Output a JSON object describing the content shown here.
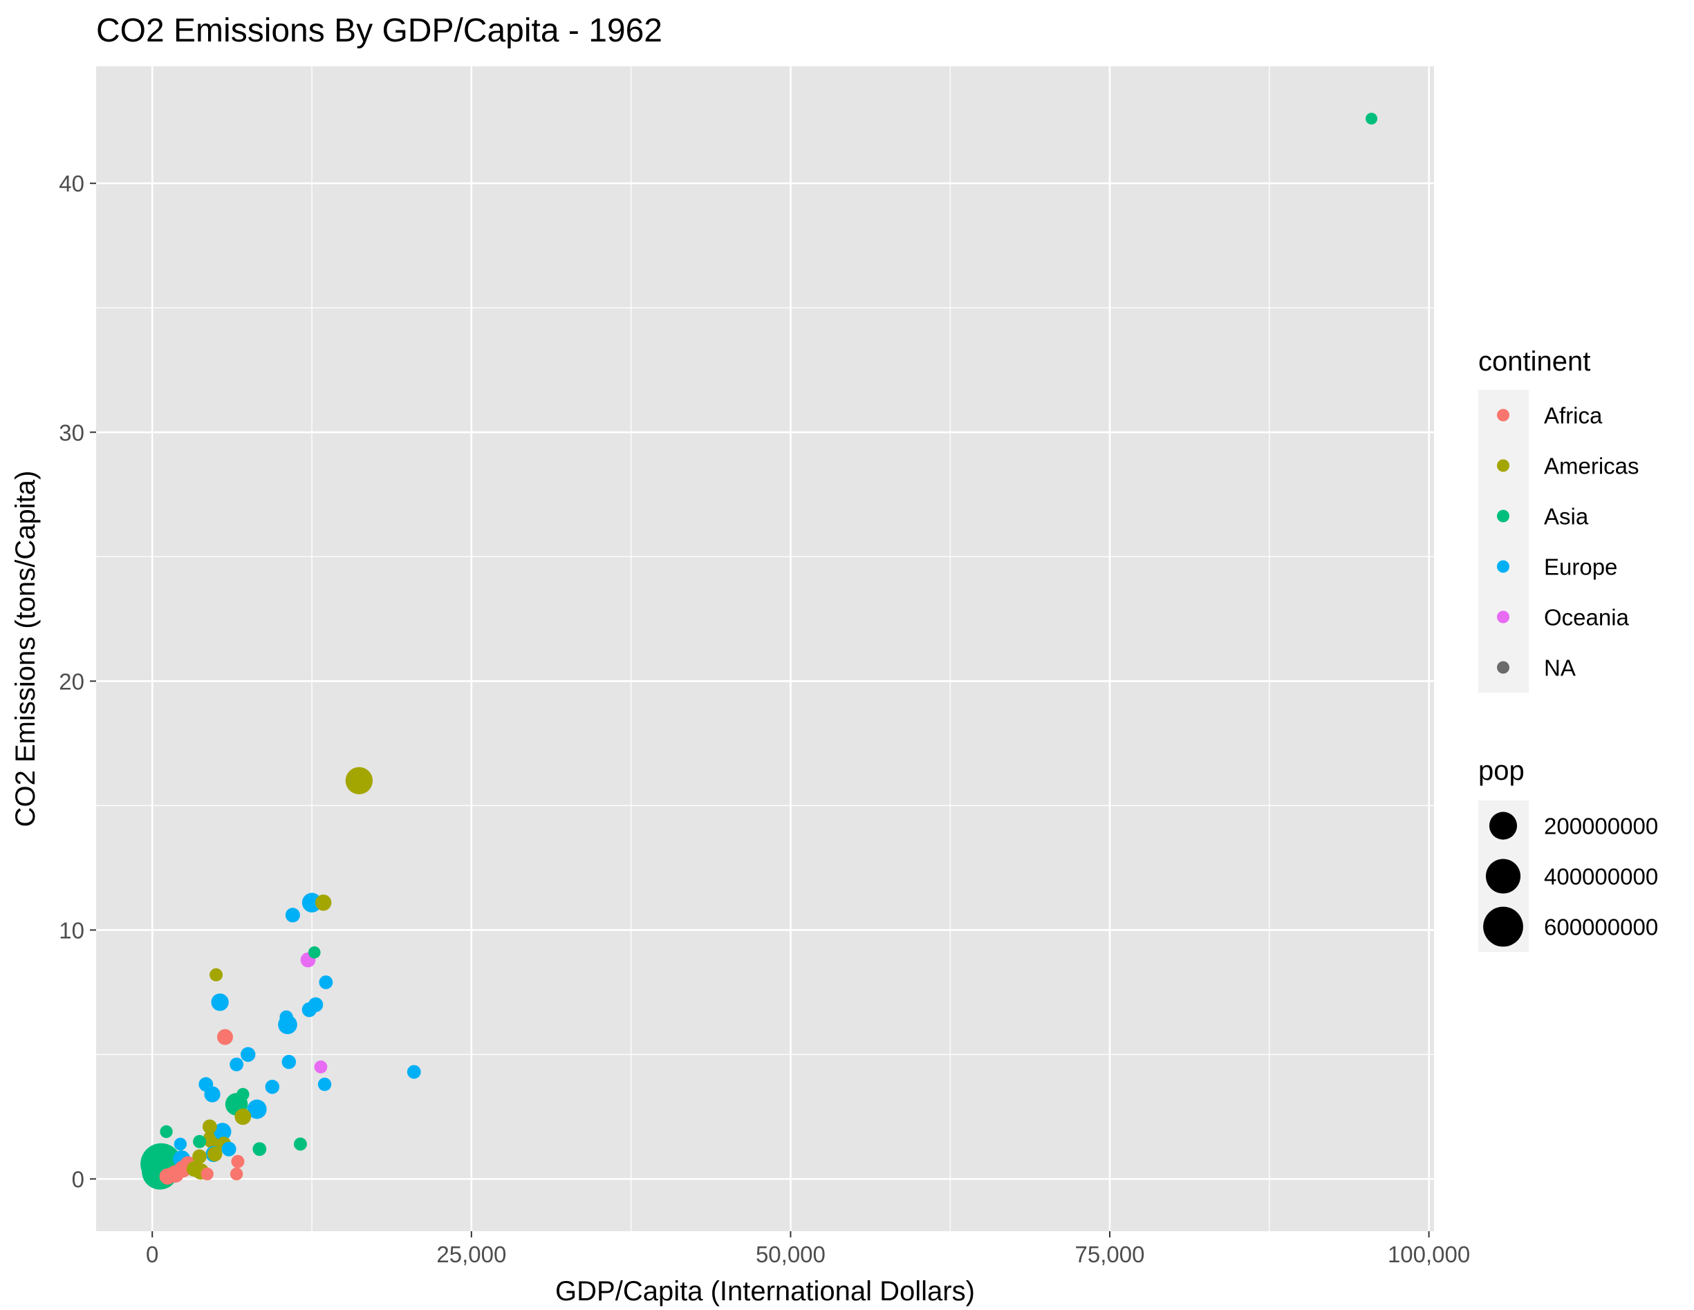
{
  "chart_data": {
    "type": "scatter",
    "title": "CO2 Emissions By GDP/Capita - 1962",
    "xlabel": "GDP/Capita (International Dollars)",
    "ylabel": "CO2 Emissions (tons/Capita)",
    "xlim": [
      -4400,
      100400
    ],
    "ylim": [
      -2.1,
      44.7
    ],
    "x_ticks": [
      {
        "value": 0,
        "label": "0"
      },
      {
        "value": 25000,
        "label": "25,000"
      },
      {
        "value": 50000,
        "label": "50,000"
      },
      {
        "value": 75000,
        "label": "75,000"
      },
      {
        "value": 100000,
        "label": "100,000"
      }
    ],
    "y_ticks": [
      {
        "value": 0,
        "label": "0"
      },
      {
        "value": 10,
        "label": "10"
      },
      {
        "value": 20,
        "label": "20"
      },
      {
        "value": 30,
        "label": "30"
      },
      {
        "value": 40,
        "label": "40"
      }
    ],
    "x_minor": [
      12500,
      37500,
      62500,
      87500
    ],
    "y_minor": [
      5,
      15,
      25,
      35
    ],
    "grid": true,
    "panel_color": "#e5e5e5",
    "grid_color": "#ffffff",
    "legend_position": "right",
    "color_legend": {
      "title": "continent",
      "items": [
        {
          "label": "Africa",
          "color": "#f8766d"
        },
        {
          "label": "Americas",
          "color": "#a3a500"
        },
        {
          "label": "Asia",
          "color": "#00bf7d"
        },
        {
          "label": "Europe",
          "color": "#00b0f6"
        },
        {
          "label": "Oceania",
          "color": "#e76bf3"
        },
        {
          "label": "NA",
          "color": "#6b6b6b"
        }
      ]
    },
    "size_legend": {
      "title": "pop",
      "items": [
        {
          "label": "200000000",
          "pop": 200000000
        },
        {
          "label": "400000000",
          "pop": 400000000
        },
        {
          "label": "600000000",
          "pop": 600000000
        }
      ]
    },
    "series": [
      {
        "name": "Africa",
        "color": "#f8766d",
        "points": [
          {
            "x": 5700,
            "y": 5.7,
            "pop": 17000000
          },
          {
            "x": 6700,
            "y": 0.7,
            "pop": 3000000
          },
          {
            "x": 6600,
            "y": 0.2,
            "pop": 2000000
          },
          {
            "x": 4300,
            "y": 0.2,
            "pop": 2000000
          },
          {
            "x": 1800,
            "y": 0.2,
            "pop": 30000000
          },
          {
            "x": 1200,
            "y": 0.1,
            "pop": 20000000
          },
          {
            "x": 2400,
            "y": 0.4,
            "pop": 25000000
          },
          {
            "x": 2800,
            "y": 0.6,
            "pop": 15000000
          }
        ]
      },
      {
        "name": "Americas",
        "color": "#a3a500",
        "points": [
          {
            "x": 16200,
            "y": 16.0,
            "pop": 187000000
          },
          {
            "x": 13400,
            "y": 11.1,
            "pop": 19000000
          },
          {
            "x": 5000,
            "y": 8.2,
            "pop": 3000000
          },
          {
            "x": 7100,
            "y": 2.5,
            "pop": 21000000
          },
          {
            "x": 4500,
            "y": 2.1,
            "pop": 8000000
          },
          {
            "x": 4700,
            "y": 1.6,
            "pop": 40000000
          },
          {
            "x": 5600,
            "y": 1.4,
            "pop": 10000000
          },
          {
            "x": 3300,
            "y": 0.4,
            "pop": 15000000
          },
          {
            "x": 3700,
            "y": 0.9,
            "pop": 8000000
          },
          {
            "x": 4900,
            "y": 1.0,
            "pop": 10000000
          },
          {
            "x": 3800,
            "y": 0.3,
            "pop": 20000000
          }
        ]
      },
      {
        "name": "Asia",
        "color": "#00bf7d",
        "points": [
          {
            "x": 95500,
            "y": 42.6,
            "pop": 400000
          },
          {
            "x": 700,
            "y": 0.6,
            "pop": 665000000
          },
          {
            "x": 600,
            "y": 0.3,
            "pop": 455000000
          },
          {
            "x": 6600,
            "y": 3.0,
            "pop": 95000000
          },
          {
            "x": 1100,
            "y": 1.9,
            "pop": 2000000
          },
          {
            "x": 12700,
            "y": 9.1,
            "pop": 1000000
          },
          {
            "x": 11600,
            "y": 1.4,
            "pop": 3000000
          },
          {
            "x": 8400,
            "y": 1.2,
            "pop": 5000000
          },
          {
            "x": 7100,
            "y": 3.4,
            "pop": 2000000
          },
          {
            "x": 3700,
            "y": 1.5,
            "pop": 3000000
          }
        ]
      },
      {
        "name": "Europe",
        "color": "#00b0f6",
        "points": [
          {
            "x": 12500,
            "y": 11.1,
            "pop": 53000000
          },
          {
            "x": 11000,
            "y": 10.6,
            "pop": 9000000
          },
          {
            "x": 5300,
            "y": 7.1,
            "pop": 30000000
          },
          {
            "x": 13600,
            "y": 7.9,
            "pop": 5000000
          },
          {
            "x": 12800,
            "y": 7.0,
            "pop": 10000000
          },
          {
            "x": 12300,
            "y": 6.8,
            "pop": 10000000
          },
          {
            "x": 10500,
            "y": 6.5,
            "pop": 4000000
          },
          {
            "x": 10600,
            "y": 6.2,
            "pop": 47000000
          },
          {
            "x": 7500,
            "y": 5.0,
            "pop": 10000000
          },
          {
            "x": 6600,
            "y": 4.6,
            "pop": 5000000
          },
          {
            "x": 10700,
            "y": 4.7,
            "pop": 7000000
          },
          {
            "x": 20500,
            "y": 4.3,
            "pop": 5000000
          },
          {
            "x": 13500,
            "y": 3.8,
            "pop": 4000000
          },
          {
            "x": 9400,
            "y": 3.7,
            "pop": 7000000
          },
          {
            "x": 4200,
            "y": 3.8,
            "pop": 8000000
          },
          {
            "x": 4700,
            "y": 3.4,
            "pop": 18000000
          },
          {
            "x": 8200,
            "y": 2.8,
            "pop": 50000000
          },
          {
            "x": 5500,
            "y": 1.9,
            "pop": 30000000
          },
          {
            "x": 6000,
            "y": 1.2,
            "pop": 9000000
          },
          {
            "x": 4800,
            "y": 1.0,
            "pop": 18000000
          },
          {
            "x": 2200,
            "y": 1.4,
            "pop": 2000000
          },
          {
            "x": 2300,
            "y": 0.8,
            "pop": 28000000
          }
        ]
      },
      {
        "name": "Oceania",
        "color": "#e76bf3",
        "points": [
          {
            "x": 12200,
            "y": 8.8,
            "pop": 11000000
          },
          {
            "x": 13200,
            "y": 4.5,
            "pop": 2500000
          }
        ]
      }
    ]
  }
}
